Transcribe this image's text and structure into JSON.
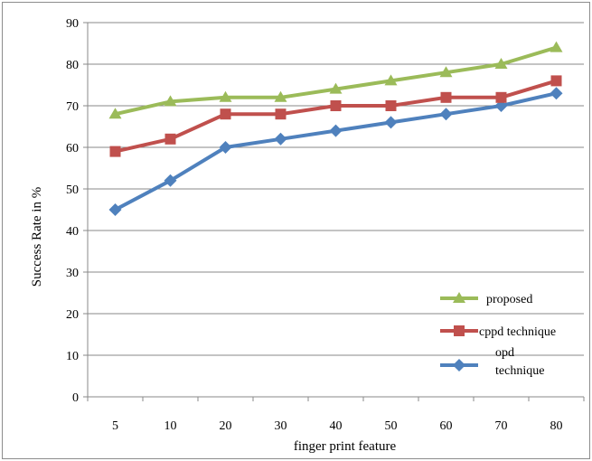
{
  "chart_data": {
    "type": "line",
    "categories": [
      "5",
      "10",
      "20",
      "30",
      "40",
      "50",
      "60",
      "70",
      "80"
    ],
    "series": [
      {
        "name": "proposed",
        "values": [
          68,
          71,
          72,
          72,
          74,
          76,
          78,
          80,
          84
        ],
        "color": "#9bbb59",
        "marker": "triangle"
      },
      {
        "name": "cppd technique",
        "values": [
          59,
          62,
          68,
          68,
          70,
          70,
          72,
          72,
          76
        ],
        "color": "#c0504d",
        "marker": "square"
      },
      {
        "name": "opd technique",
        "values": [
          45,
          52,
          60,
          62,
          64,
          66,
          68,
          70,
          73
        ],
        "color": "#4f81bd",
        "marker": "diamond"
      }
    ],
    "xlabel": "finger print feature",
    "ylabel": "Success Rate  in %",
    "ylim": [
      0,
      90
    ],
    "yticks": [
      0,
      10,
      20,
      30,
      40,
      50,
      60,
      70,
      80,
      90
    ],
    "grid": true,
    "legend_position": "bottom-right"
  }
}
